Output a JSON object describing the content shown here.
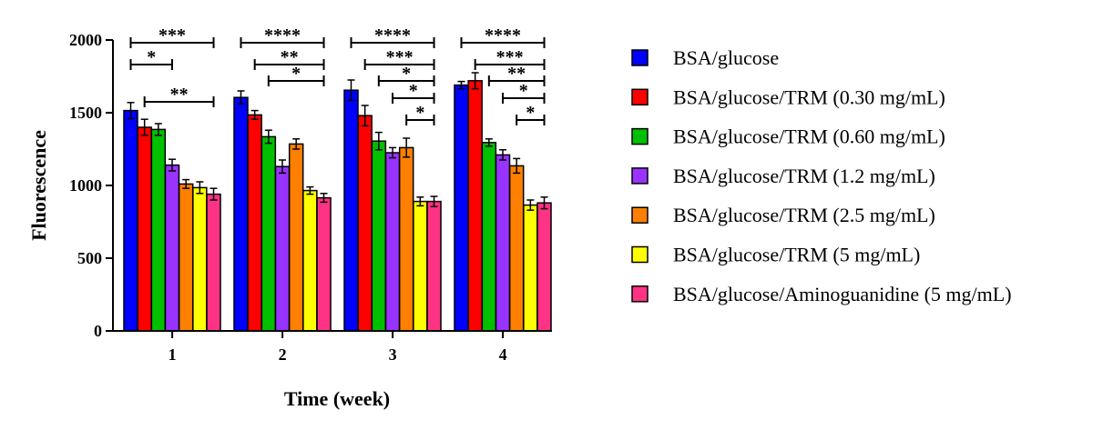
{
  "chart_data": {
    "type": "bar",
    "title": "",
    "xlabel": "Time (week)",
    "ylabel": "Fluorescence",
    "ylim": [
      0,
      2000
    ],
    "yticks": [
      0,
      500,
      1000,
      1500,
      2000
    ],
    "categories": [
      "1",
      "2",
      "3",
      "4"
    ],
    "legend_position": "right",
    "series": [
      {
        "name": "BSA/glucose",
        "color": "#0000ff",
        "values": [
          1515,
          1605,
          1655,
          1690
        ],
        "errors": [
          55,
          45,
          70,
          25
        ]
      },
      {
        "name": "BSA/glucose/TRM (0.30 mg/mL)",
        "color": "#ff0000",
        "values": [
          1400,
          1485,
          1480,
          1720
        ],
        "errors": [
          55,
          30,
          70,
          55
        ]
      },
      {
        "name": "BSA/glucose/TRM (0.60 mg/mL)",
        "color": "#00c000",
        "values": [
          1385,
          1335,
          1305,
          1295
        ],
        "errors": [
          40,
          45,
          60,
          25
        ]
      },
      {
        "name": "BSA/glucose/TRM (1.2 mg/mL)",
        "color": "#9933ff",
        "values": [
          1140,
          1130,
          1225,
          1210
        ],
        "errors": [
          40,
          45,
          35,
          35
        ]
      },
      {
        "name": "BSA/glucose/TRM (2.5 mg/mL)",
        "color": "#ff8000",
        "values": [
          1010,
          1285,
          1260,
          1135
        ],
        "errors": [
          30,
          35,
          65,
          50
        ]
      },
      {
        "name": "BSA/glucose/TRM (5 mg/mL)",
        "color": "#ffff00",
        "values": [
          985,
          965,
          890,
          865
        ],
        "errors": [
          40,
          25,
          30,
          35
        ]
      },
      {
        "name": "BSA/glucose/Aminoguanidine (5 mg/mL)",
        "color": "#ff3385",
        "values": [
          940,
          915,
          890,
          880
        ],
        "errors": [
          40,
          30,
          35,
          40
        ]
      }
    ],
    "annotations": [
      {
        "group": 0,
        "from": 0,
        "to": 6,
        "level": 0,
        "label": "***"
      },
      {
        "group": 0,
        "from": 0,
        "to": 3,
        "level": 1,
        "label": "*"
      },
      {
        "group": 0,
        "from": 1,
        "to": 6,
        "level": 3,
        "label": "**"
      },
      {
        "group": 1,
        "from": 0,
        "to": 6,
        "level": 0,
        "label": "****"
      },
      {
        "group": 1,
        "from": 1,
        "to": 6,
        "level": 1,
        "label": "**"
      },
      {
        "group": 1,
        "from": 2,
        "to": 6,
        "level": 2,
        "label": "*"
      },
      {
        "group": 2,
        "from": 0,
        "to": 6,
        "level": 0,
        "label": "****"
      },
      {
        "group": 2,
        "from": 1,
        "to": 6,
        "level": 1,
        "label": "***"
      },
      {
        "group": 2,
        "from": 2,
        "to": 6,
        "level": 2,
        "label": "*"
      },
      {
        "group": 2,
        "from": 3,
        "to": 6,
        "level": 3,
        "label": "*"
      },
      {
        "group": 2,
        "from": 4,
        "to": 6,
        "level": 4,
        "label": "*"
      },
      {
        "group": 3,
        "from": 0,
        "to": 6,
        "level": 0,
        "label": "****"
      },
      {
        "group": 3,
        "from": 1,
        "to": 6,
        "level": 1,
        "label": "***"
      },
      {
        "group": 3,
        "from": 2,
        "to": 6,
        "level": 2,
        "label": "**"
      },
      {
        "group": 3,
        "from": 3,
        "to": 6,
        "level": 3,
        "label": "*"
      },
      {
        "group": 3,
        "from": 4,
        "to": 6,
        "level": 4,
        "label": "*"
      }
    ]
  }
}
